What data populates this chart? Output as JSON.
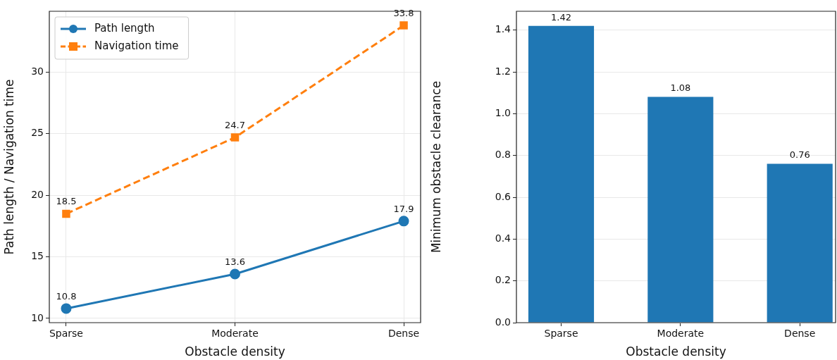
{
  "chart_data": [
    {
      "type": "line",
      "categories": [
        "Sparse",
        "Moderate",
        "Dense"
      ],
      "xlabel": "Obstacle density",
      "ylabel": "Path length / Navigation time",
      "ylim": [
        9.65,
        34.95
      ],
      "yticks": [
        10,
        15,
        20,
        25,
        30
      ],
      "grid": true,
      "legend": "top left",
      "data_labels": true,
      "series": [
        {
          "name": "Path length",
          "color": "#1f77b4",
          "marker": "circle",
          "line_style": "solid",
          "values": [
            10.8,
            13.6,
            17.9
          ]
        },
        {
          "name": "Navigation time",
          "color": "#ff7f0e",
          "marker": "square",
          "line_style": "dashed",
          "values": [
            18.5,
            24.7,
            33.8
          ]
        }
      ]
    },
    {
      "type": "bar",
      "categories": [
        "Sparse",
        "Moderate",
        "Dense"
      ],
      "xlabel": "Obstacle density",
      "ylabel": "Minimum obstacle clearance",
      "ylim": [
        0,
        1.49
      ],
      "yticks": [
        {
          "value": 0,
          "label": "0.0"
        },
        0.2,
        0.4,
        0.6,
        0.8,
        {
          "value": 1,
          "label": "1.0"
        },
        1.2,
        1.4
      ],
      "grid": "y",
      "data_labels": true,
      "color": "#1f77b4",
      "values": [
        1.42,
        1.08,
        0.76
      ]
    }
  ]
}
